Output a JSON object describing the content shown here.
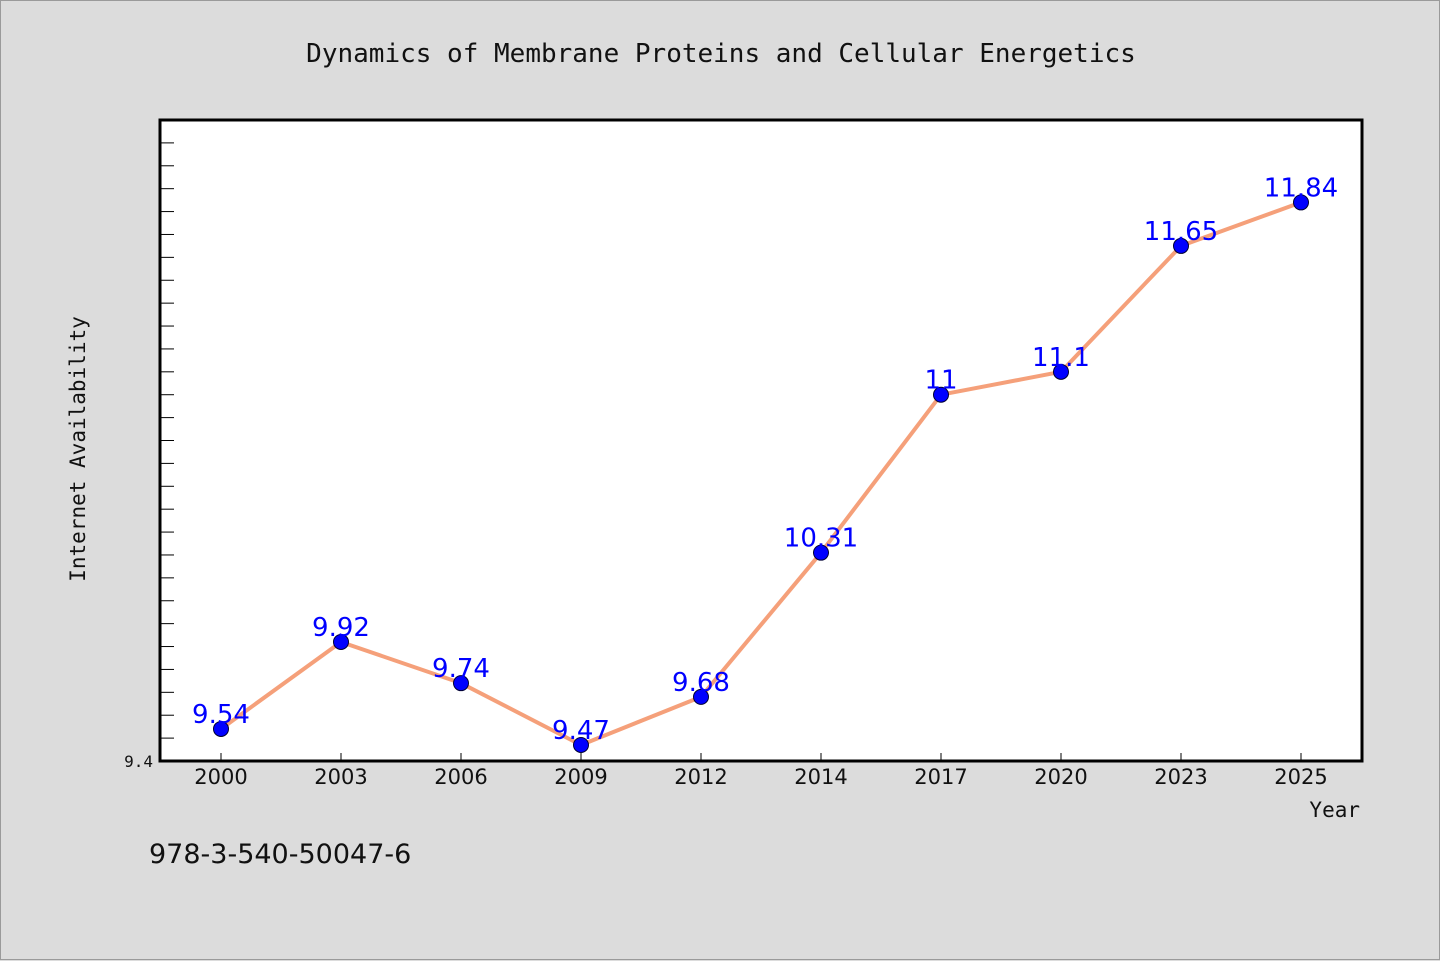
{
  "chart_data": {
    "type": "line",
    "title": "Dynamics of Membrane Proteins and Cellular Energetics",
    "xlabel": "Year",
    "ylabel": "Internet Availability",
    "categories": [
      "2000",
      "2003",
      "2006",
      "2009",
      "2012",
      "2014",
      "2017",
      "2020",
      "2023",
      "2025"
    ],
    "series": [
      {
        "values": [
          9.54,
          9.92,
          9.74,
          9.47,
          9.68,
          10.31,
          11,
          11.1,
          11.65,
          11.84
        ]
      }
    ],
    "data_labels": [
      "9.54",
      "9.92",
      "9.74",
      "9.47",
      "9.68",
      "10.31",
      "11",
      "11.1",
      "11.65",
      "11.84"
    ],
    "ylim": [
      9.4,
      12.2
    ],
    "ytick_labels": [
      "9.4"
    ],
    "grid": false,
    "colors": {
      "line": "#f5a07a",
      "marker": "#0000ff",
      "data_label": "#0000ff",
      "background": "#dcdcdc",
      "plot_area": "#ffffff"
    }
  },
  "footer": {
    "isbn": "978-3-540-50047-6"
  }
}
